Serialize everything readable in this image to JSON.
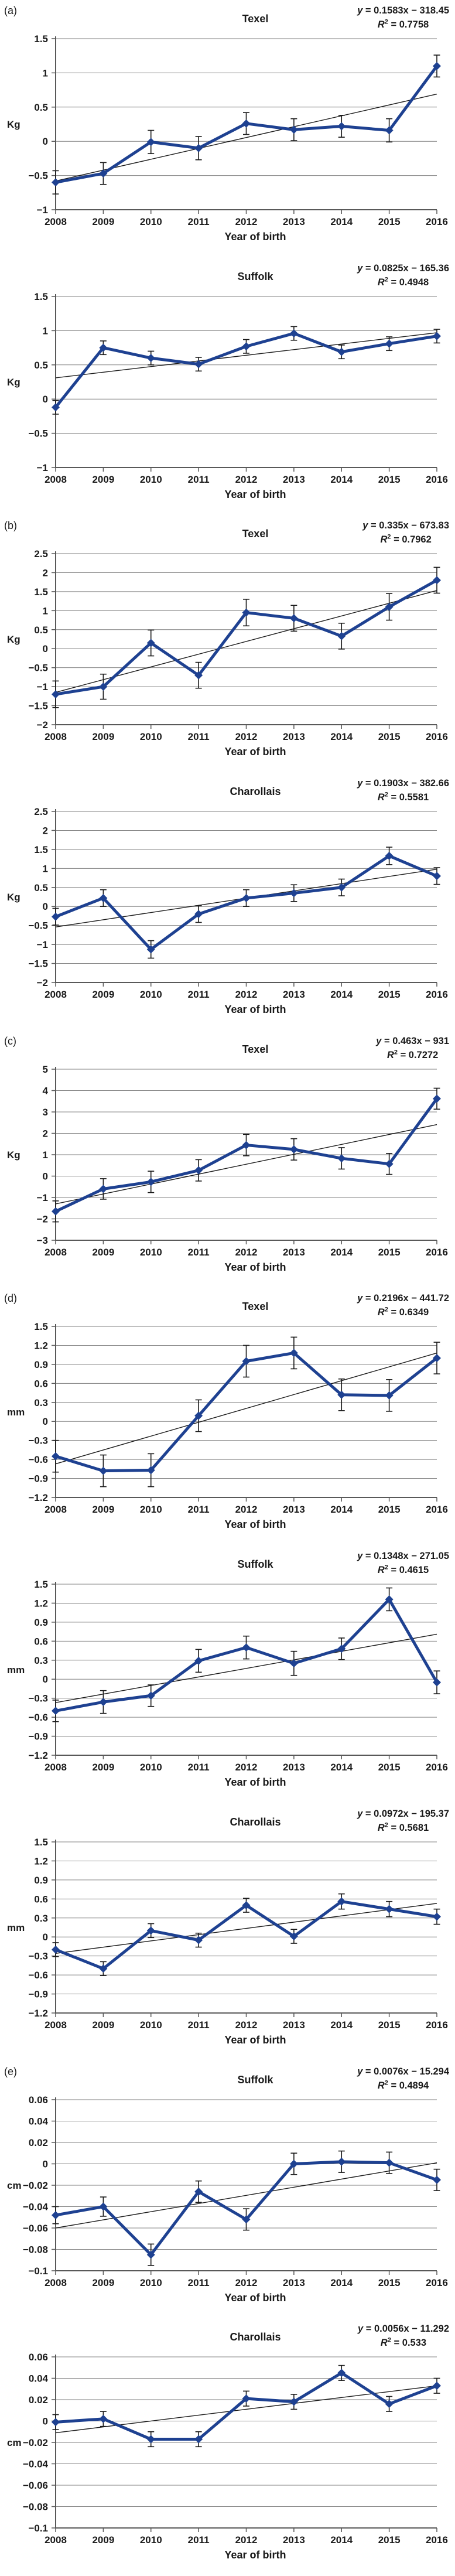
{
  "figure": {
    "xlabel": "Year of birth",
    "years": [
      "2008",
      "2009",
      "2010",
      "2011",
      "2012",
      "2013",
      "2014",
      "2015",
      "2016"
    ],
    "colors": {
      "series": "#1e4191",
      "trend": "#1a1a1a",
      "grid": "#808080",
      "axis": "#595959",
      "error": "#1a1a1a",
      "text": "#1a1a1a"
    }
  },
  "chart_data": [
    {
      "type": "line",
      "panel": "(a)",
      "title": "Texel",
      "eq": {
        "var": "y",
        "rest": " = 0.1583x − 318.45"
      },
      "r2": {
        "var": "R",
        "sup": "2",
        "rest": " = 0.7758"
      },
      "ylabel": "Kg",
      "ylim": [
        -1,
        1.5
      ],
      "yticks": [
        {
          "v": 1.5,
          "label": "1.5"
        },
        {
          "v": 1,
          "label": "1"
        },
        {
          "v": 0.5,
          "label": "0.5"
        },
        {
          "v": 0,
          "label": "0"
        },
        {
          "v": -0.5,
          "label": "−0.5"
        },
        {
          "v": -1,
          "label": "−1"
        }
      ],
      "x": [
        2008,
        2009,
        2010,
        2011,
        2012,
        2013,
        2014,
        2015,
        2016
      ],
      "values": [
        -0.6,
        -0.47,
        -0.01,
        -0.1,
        0.26,
        0.17,
        0.22,
        0.16,
        1.1
      ],
      "errors": [
        0.17,
        0.16,
        0.17,
        0.17,
        0.16,
        0.16,
        0.16,
        0.17,
        0.16
      ],
      "trend": {
        "start": -0.58,
        "end": 0.69
      }
    },
    {
      "type": "line",
      "panel": "",
      "title": "Suffolk",
      "eq": {
        "var": "y",
        "rest": " = 0.0825x − 165.36"
      },
      "r2": {
        "var": "R",
        "sup": "2",
        "rest": " = 0.4948"
      },
      "ylabel": "Kg",
      "ylim": [
        -1,
        1.5
      ],
      "yticks": [
        {
          "v": 1.5,
          "label": "1.5"
        },
        {
          "v": 1,
          "label": "1"
        },
        {
          "v": 0.5,
          "label": "0.5"
        },
        {
          "v": 0,
          "label": "0"
        },
        {
          "v": -0.5,
          "label": "−0.5"
        },
        {
          "v": -1,
          "label": "−1"
        }
      ],
      "x": [
        2008,
        2009,
        2010,
        2011,
        2012,
        2013,
        2014,
        2015,
        2016
      ],
      "values": [
        -0.12,
        0.75,
        0.6,
        0.51,
        0.77,
        0.96,
        0.69,
        0.81,
        0.92
      ],
      "errors": [
        0.1,
        0.1,
        0.1,
        0.1,
        0.1,
        0.1,
        0.1,
        0.1,
        0.1
      ],
      "trend": {
        "start": 0.31,
        "end": 0.97
      }
    },
    {
      "type": "line",
      "panel": "(b)",
      "title": "Texel",
      "eq": {
        "var": "y",
        "rest": " = 0.335x − 673.83"
      },
      "r2": {
        "var": "R",
        "sup": "2",
        "rest": " = 0.7962"
      },
      "ylabel": "Kg",
      "ylim": [
        -2,
        2.5
      ],
      "yticks": [
        {
          "v": 2.5,
          "label": "2.5"
        },
        {
          "v": 2,
          "label": "2"
        },
        {
          "v": 1.5,
          "label": "1.5"
        },
        {
          "v": 1,
          "label": "1"
        },
        {
          "v": 0.5,
          "label": "0.5"
        },
        {
          "v": 0,
          "label": "0"
        },
        {
          "v": -0.5,
          "label": "−0.5"
        },
        {
          "v": -1,
          "label": "−1"
        },
        {
          "v": -1.5,
          "label": "−1.5"
        },
        {
          "v": -2,
          "label": "−2"
        }
      ],
      "x": [
        2008,
        2009,
        2010,
        2011,
        2012,
        2013,
        2014,
        2015,
        2016
      ],
      "values": [
        -1.2,
        -1.0,
        0.15,
        -0.7,
        0.95,
        0.8,
        0.33,
        1.1,
        1.8
      ],
      "errors": [
        0.35,
        0.33,
        0.34,
        0.34,
        0.35,
        0.34,
        0.34,
        0.35,
        0.34
      ],
      "trend": {
        "start": -1.15,
        "end": 1.53
      }
    },
    {
      "type": "line",
      "panel": "",
      "title": "Charollais",
      "eq": {
        "var": "y",
        "rest": " = 0.1903x − 382.66"
      },
      "r2": {
        "var": "R",
        "sup": "2",
        "rest": " = 0.5581"
      },
      "ylabel": "Kg",
      "ylim": [
        -2,
        2.5
      ],
      "yticks": [
        {
          "v": 2.5,
          "label": "2.5"
        },
        {
          "v": 2,
          "label": "2"
        },
        {
          "v": 1.5,
          "label": "1.5"
        },
        {
          "v": 1,
          "label": "1"
        },
        {
          "v": 0.5,
          "label": "0.5"
        },
        {
          "v": 0,
          "label": "0"
        },
        {
          "v": -0.5,
          "label": "−0.5"
        },
        {
          "v": -1,
          "label": "−1"
        },
        {
          "v": -1.5,
          "label": "−1.5"
        },
        {
          "v": -2,
          "label": "−2"
        }
      ],
      "x": [
        2008,
        2009,
        2010,
        2011,
        2012,
        2013,
        2014,
        2015,
        2016
      ],
      "values": [
        -0.27,
        0.22,
        -1.13,
        -0.2,
        0.22,
        0.35,
        0.5,
        1.33,
        0.8
      ],
      "errors": [
        0.22,
        0.22,
        0.23,
        0.22,
        0.22,
        0.22,
        0.22,
        0.23,
        0.22
      ],
      "trend": {
        "start": -0.54,
        "end": 0.98
      }
    },
    {
      "type": "line",
      "panel": "(c)",
      "title": "Texel",
      "eq": {
        "var": "y",
        "rest": " = 0.463x − 931"
      },
      "r2": {
        "var": "R",
        "sup": "2",
        "rest": " = 0.7272"
      },
      "ylabel": "Kg",
      "ylim": [
        -3,
        5
      ],
      "yticks": [
        {
          "v": 5,
          "label": "5"
        },
        {
          "v": 4,
          "label": "4"
        },
        {
          "v": 3,
          "label": "3"
        },
        {
          "v": 2,
          "label": "2"
        },
        {
          "v": 1,
          "label": "1"
        },
        {
          "v": 0,
          "label": "0"
        },
        {
          "v": -1,
          "label": "−1"
        },
        {
          "v": -2,
          "label": "−2"
        },
        {
          "v": -3,
          "label": "−3"
        }
      ],
      "x": [
        2008,
        2009,
        2010,
        2011,
        2012,
        2013,
        2014,
        2015,
        2016
      ],
      "values": [
        -1.65,
        -0.6,
        -0.27,
        0.27,
        1.45,
        1.25,
        0.83,
        0.57,
        3.62
      ],
      "errors": [
        0.49,
        0.48,
        0.5,
        0.5,
        0.5,
        0.5,
        0.5,
        0.49,
        0.49
      ],
      "trend": {
        "start": -1.3,
        "end": 2.41
      }
    },
    {
      "type": "line",
      "panel": "(d)",
      "title": "Texel",
      "eq": {
        "var": "y",
        "rest": " = 0.2196x − 441.72"
      },
      "r2": {
        "var": "R",
        "sup": "2",
        "rest": " = 0.6349"
      },
      "ylabel": "mm",
      "ylim": [
        -1.2,
        1.5
      ],
      "yticks": [
        {
          "v": 1.5,
          "label": "1.5"
        },
        {
          "v": 1.2,
          "label": "1.2"
        },
        {
          "v": 0.9,
          "label": "0.9"
        },
        {
          "v": 0.6,
          "label": "0.6"
        },
        {
          "v": 0.3,
          "label": "0.3"
        },
        {
          "v": 0,
          "label": "0"
        },
        {
          "v": -0.3,
          "label": "−0.3"
        },
        {
          "v": -0.6,
          "label": "−0.6"
        },
        {
          "v": -0.9,
          "label": "−0.9"
        },
        {
          "v": -1.2,
          "label": "−1.2"
        }
      ],
      "x": [
        2008,
        2009,
        2010,
        2011,
        2012,
        2013,
        2014,
        2015,
        2016
      ],
      "values": [
        -0.55,
        -0.78,
        -0.77,
        0.09,
        0.95,
        1.08,
        0.42,
        0.41,
        1.0
      ],
      "errors": [
        0.25,
        0.25,
        0.26,
        0.25,
        0.25,
        0.25,
        0.25,
        0.25,
        0.25
      ],
      "trend": {
        "start": -0.67,
        "end": 1.08
      }
    },
    {
      "type": "line",
      "panel": "",
      "title": "Suffolk",
      "eq": {
        "var": "y",
        "rest": " = 0.1348x − 271.05"
      },
      "r2": {
        "var": "R",
        "sup": "2",
        "rest": " = 0.4615"
      },
      "ylabel": "mm",
      "ylim": [
        -1.2,
        1.5
      ],
      "yticks": [
        {
          "v": 1.5,
          "label": "1.5"
        },
        {
          "v": 1.2,
          "label": "1.2"
        },
        {
          "v": 0.9,
          "label": "0.9"
        },
        {
          "v": 0.6,
          "label": "0.6"
        },
        {
          "v": 0.3,
          "label": "0.3"
        },
        {
          "v": 0,
          "label": "0"
        },
        {
          "v": -0.3,
          "label": "−0.3"
        },
        {
          "v": -0.6,
          "label": "−0.6"
        },
        {
          "v": -0.9,
          "label": "−0.9"
        },
        {
          "v": -1.2,
          "label": "−1.2"
        }
      ],
      "x": [
        2008,
        2009,
        2010,
        2011,
        2012,
        2013,
        2014,
        2015,
        2016
      ],
      "values": [
        -0.5,
        -0.36,
        -0.26,
        0.29,
        0.5,
        0.25,
        0.48,
        1.26,
        -0.05
      ],
      "errors": [
        0.17,
        0.18,
        0.17,
        0.18,
        0.18,
        0.19,
        0.17,
        0.18,
        0.18
      ],
      "trend": {
        "start": -0.37,
        "end": 0.71
      }
    },
    {
      "type": "line",
      "panel": "",
      "title": "Charollais",
      "eq": {
        "var": "y",
        "rest": " = 0.0972x − 195.37"
      },
      "r2": {
        "var": "R",
        "sup": "2",
        "rest": " = 0.5681"
      },
      "ylabel": "mm",
      "ylim": [
        -1.2,
        1.5
      ],
      "yticks": [
        {
          "v": 1.5,
          "label": "1.5"
        },
        {
          "v": 1.2,
          "label": "1.2"
        },
        {
          "v": 0.9,
          "label": "0.9"
        },
        {
          "v": 0.6,
          "label": "0.6"
        },
        {
          "v": 0.3,
          "label": "0.3"
        },
        {
          "v": 0,
          "label": "0"
        },
        {
          "v": -0.3,
          "label": "−0.3"
        },
        {
          "v": -0.6,
          "label": "−0.6"
        },
        {
          "v": -0.9,
          "label": "−0.9"
        },
        {
          "v": -1.2,
          "label": "−1.2"
        }
      ],
      "x": [
        2008,
        2009,
        2010,
        2011,
        2012,
        2013,
        2014,
        2015,
        2016
      ],
      "values": [
        -0.2,
        -0.5,
        0.1,
        -0.05,
        0.5,
        0.01,
        0.56,
        0.44,
        0.32
      ],
      "errors": [
        0.11,
        0.11,
        0.11,
        0.11,
        0.11,
        0.11,
        0.12,
        0.12,
        0.12
      ],
      "trend": {
        "start": -0.26,
        "end": 0.53
      }
    },
    {
      "type": "line",
      "panel": "(e)",
      "title": "Suffolk",
      "eq": {
        "var": "y",
        "rest": " = 0.0076x − 15.294"
      },
      "r2": {
        "var": "R",
        "sup": "2",
        "rest": " = 0.4894"
      },
      "ylabel": "cm",
      "ylim": [
        -0.1,
        0.06
      ],
      "yticks": [
        {
          "v": 0.06,
          "label": "0.06"
        },
        {
          "v": 0.04,
          "label": "0.04"
        },
        {
          "v": 0.02,
          "label": "0.02"
        },
        {
          "v": 0,
          "label": "0"
        },
        {
          "v": -0.02,
          "label": "−0.02"
        },
        {
          "v": -0.04,
          "label": "−0.04"
        },
        {
          "v": -0.06,
          "label": "−0.06"
        },
        {
          "v": -0.08,
          "label": "−0.08"
        },
        {
          "v": -0.1,
          "label": "−0.1"
        }
      ],
      "x": [
        2008,
        2009,
        2010,
        2011,
        2012,
        2013,
        2014,
        2015,
        2016
      ],
      "values": [
        -0.048,
        -0.04,
        -0.085,
        -0.026,
        -0.052,
        0.0,
        0.002,
        0.001,
        -0.015
      ],
      "errors": [
        0.008,
        0.009,
        0.01,
        0.01,
        0.01,
        0.01,
        0.01,
        0.01,
        0.01
      ],
      "trend": {
        "start": -0.06,
        "end": 0.001
      }
    },
    {
      "type": "line",
      "panel": "",
      "title": "Charollais",
      "eq": {
        "var": "y",
        "rest": " = 0.0056x − 11.292"
      },
      "r2": {
        "var": "R",
        "sup": "2",
        "rest": " = 0.533"
      },
      "ylabel": "cm",
      "ylim": [
        -0.1,
        0.06
      ],
      "yticks": [
        {
          "v": 0.06,
          "label": "0.06"
        },
        {
          "v": 0.04,
          "label": "0.04"
        },
        {
          "v": 0.02,
          "label": "0.02"
        },
        {
          "v": 0,
          "label": "0"
        },
        {
          "v": -0.02,
          "label": "−0.02"
        },
        {
          "v": -0.04,
          "label": "−0.04"
        },
        {
          "v": -0.06,
          "label": "−0.06"
        },
        {
          "v": -0.08,
          "label": "−0.08"
        },
        {
          "v": -0.1,
          "label": "−0.1"
        }
      ],
      "x": [
        2008,
        2009,
        2010,
        2011,
        2012,
        2013,
        2014,
        2015,
        2016
      ],
      "values": [
        -0.001,
        0.002,
        -0.017,
        -0.017,
        0.021,
        0.018,
        0.045,
        0.016,
        0.033
      ],
      "errors": [
        0.007,
        0.007,
        0.007,
        0.007,
        0.007,
        0.007,
        0.007,
        0.007,
        0.007
      ],
      "trend": {
        "start": -0.011,
        "end": 0.033
      }
    }
  ]
}
